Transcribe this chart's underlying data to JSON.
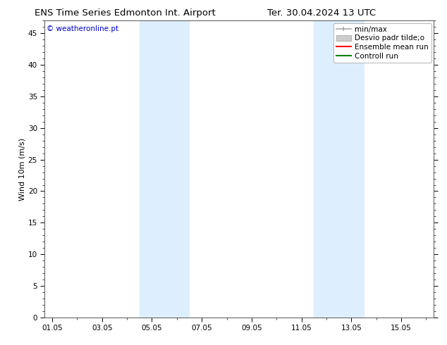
{
  "title_left": "ENS Time Series Edmonton Int. Airport",
  "title_right": "Ter. 30.04.2024 13 UTC",
  "ylabel": "Wind 10m (m/s)",
  "watermark": "© weatheronline.pt",
  "watermark_color": "#0000cc",
  "background_color": "#ffffff",
  "plot_bg_color": "#ffffff",
  "ylim": [
    0,
    47
  ],
  "yticks": [
    0,
    5,
    10,
    15,
    20,
    25,
    30,
    35,
    40,
    45
  ],
  "xtick_labels": [
    "01.05",
    "03.05",
    "05.05",
    "07.05",
    "09.05",
    "11.05",
    "13.05",
    "15.05"
  ],
  "xtick_positions": [
    0,
    2,
    4,
    6,
    8,
    10,
    12,
    14
  ],
  "xlim": [
    -0.3,
    15.3
  ],
  "shaded_bands": [
    {
      "xmin": 3.5,
      "xmax": 5.5,
      "color": "#ddeeff"
    },
    {
      "xmin": 10.5,
      "xmax": 12.5,
      "color": "#ddeeff"
    }
  ],
  "legend_entries": [
    {
      "label": "min/max",
      "color": "#aaaaaa",
      "style": "errbar"
    },
    {
      "label": "Desvio padr tilde;o",
      "color": "#cccccc",
      "style": "box"
    },
    {
      "label": "Ensemble mean run",
      "color": "#ff0000",
      "style": "line"
    },
    {
      "label": "Controll run",
      "color": "#008000",
      "style": "line"
    }
  ],
  "title_fontsize": 9.5,
  "axis_label_fontsize": 8,
  "tick_fontsize": 7.5,
  "legend_fontsize": 7.5,
  "watermark_fontsize": 7.5
}
